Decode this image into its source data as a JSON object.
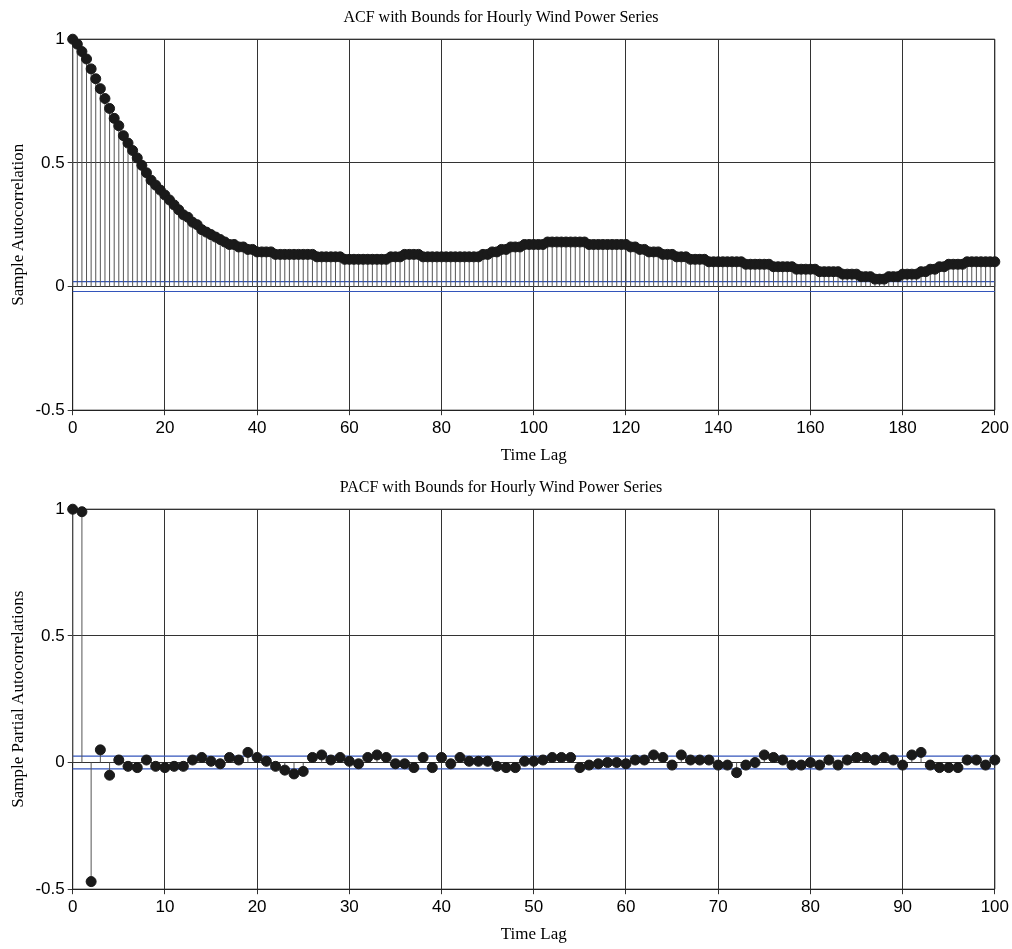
{
  "chart_data": [
    {
      "type": "lollipop",
      "title": "ACF with Bounds for Hourly Wind Power Series",
      "xlabel": "Time Lag",
      "ylabel": "Sample Autocorrelation",
      "x": [
        0,
        1,
        2,
        3,
        4,
        5,
        6,
        7,
        8,
        9,
        10,
        11,
        12,
        13,
        14,
        15,
        16,
        17,
        18,
        19,
        20,
        21,
        22,
        23,
        24,
        25,
        26,
        27,
        28,
        29,
        30,
        31,
        32,
        33,
        34,
        35,
        36,
        37,
        38,
        39,
        40,
        41,
        42,
        43,
        44,
        45,
        46,
        47,
        48,
        49,
        50,
        51,
        52,
        53,
        54,
        55,
        56,
        57,
        58,
        59,
        60,
        61,
        62,
        63,
        64,
        65,
        66,
        67,
        68,
        69,
        70,
        71,
        72,
        73,
        74,
        75,
        76,
        77,
        78,
        79,
        80,
        81,
        82,
        83,
        84,
        85,
        86,
        87,
        88,
        89,
        90,
        91,
        92,
        93,
        94,
        95,
        96,
        97,
        98,
        99,
        100,
        101,
        102,
        103,
        104,
        105,
        106,
        107,
        108,
        109,
        110,
        111,
        112,
        113,
        114,
        115,
        116,
        117,
        118,
        119,
        120,
        121,
        122,
        123,
        124,
        125,
        126,
        127,
        128,
        129,
        130,
        131,
        132,
        133,
        134,
        135,
        136,
        137,
        138,
        139,
        140,
        141,
        142,
        143,
        144,
        145,
        146,
        147,
        148,
        149,
        150,
        151,
        152,
        153,
        154,
        155,
        156,
        157,
        158,
        159,
        160,
        161,
        162,
        163,
        164,
        165,
        166,
        167,
        168,
        169,
        170,
        171,
        172,
        173,
        174,
        175,
        176,
        177,
        178,
        179,
        180,
        181,
        182,
        183,
        184,
        185,
        186,
        187,
        188,
        189,
        190,
        191,
        192,
        193,
        194,
        195,
        196,
        197,
        198,
        199,
        200
      ],
      "values": [
        1.0,
        0.98,
        0.95,
        0.92,
        0.88,
        0.84,
        0.8,
        0.76,
        0.72,
        0.68,
        0.65,
        0.61,
        0.58,
        0.55,
        0.52,
        0.49,
        0.46,
        0.43,
        0.41,
        0.39,
        0.37,
        0.35,
        0.33,
        0.31,
        0.29,
        0.28,
        0.26,
        0.25,
        0.23,
        0.22,
        0.21,
        0.2,
        0.19,
        0.18,
        0.17,
        0.17,
        0.16,
        0.16,
        0.15,
        0.15,
        0.14,
        0.14,
        0.14,
        0.14,
        0.13,
        0.13,
        0.13,
        0.13,
        0.13,
        0.13,
        0.13,
        0.13,
        0.13,
        0.12,
        0.12,
        0.12,
        0.12,
        0.12,
        0.12,
        0.11,
        0.11,
        0.11,
        0.11,
        0.11,
        0.11,
        0.11,
        0.11,
        0.11,
        0.11,
        0.12,
        0.12,
        0.12,
        0.13,
        0.13,
        0.13,
        0.13,
        0.12,
        0.12,
        0.12,
        0.12,
        0.12,
        0.12,
        0.12,
        0.12,
        0.12,
        0.12,
        0.12,
        0.12,
        0.12,
        0.13,
        0.13,
        0.14,
        0.14,
        0.15,
        0.15,
        0.16,
        0.16,
        0.16,
        0.17,
        0.17,
        0.17,
        0.17,
        0.17,
        0.18,
        0.18,
        0.18,
        0.18,
        0.18,
        0.18,
        0.18,
        0.18,
        0.18,
        0.17,
        0.17,
        0.17,
        0.17,
        0.17,
        0.17,
        0.17,
        0.17,
        0.17,
        0.16,
        0.16,
        0.15,
        0.15,
        0.14,
        0.14,
        0.14,
        0.13,
        0.13,
        0.13,
        0.12,
        0.12,
        0.12,
        0.11,
        0.11,
        0.11,
        0.11,
        0.1,
        0.1,
        0.1,
        0.1,
        0.1,
        0.1,
        0.1,
        0.1,
        0.09,
        0.09,
        0.09,
        0.09,
        0.09,
        0.09,
        0.08,
        0.08,
        0.08,
        0.08,
        0.08,
        0.07,
        0.07,
        0.07,
        0.07,
        0.07,
        0.06,
        0.06,
        0.06,
        0.06,
        0.06,
        0.05,
        0.05,
        0.05,
        0.05,
        0.04,
        0.04,
        0.04,
        0.03,
        0.03,
        0.03,
        0.04,
        0.04,
        0.04,
        0.05,
        0.05,
        0.05,
        0.05,
        0.06,
        0.06,
        0.07,
        0.07,
        0.08,
        0.08,
        0.09,
        0.09,
        0.09,
        0.09,
        0.1,
        0.1,
        0.1,
        0.1,
        0.1,
        0.1,
        0.1
      ],
      "color": "#1a1a1a",
      "marker": "circle",
      "grid": true,
      "xlim": [
        0,
        200
      ],
      "xticks": [
        0,
        20,
        40,
        60,
        80,
        100,
        120,
        140,
        160,
        180,
        200
      ],
      "ylim": [
        -0.5,
        1
      ],
      "yticks": [
        -0.5,
        0,
        0.5,
        1
      ],
      "ref_lines": [
        {
          "axis": "y",
          "value": 0.02,
          "color": "#3355bb"
        },
        {
          "axis": "y",
          "value": -0.02,
          "color": "#3355bb"
        }
      ]
    },
    {
      "type": "lollipop",
      "title": "PACF with Bounds for Hourly Wind Power Series",
      "xlabel": "Time Lag",
      "ylabel": "Sample Partial Autocorrelations",
      "x": [
        0,
        1,
        2,
        3,
        4,
        5,
        6,
        7,
        8,
        9,
        10,
        11,
        12,
        13,
        14,
        15,
        16,
        17,
        18,
        19,
        20,
        21,
        22,
        23,
        24,
        25,
        26,
        27,
        28,
        29,
        30,
        31,
        32,
        33,
        34,
        35,
        36,
        37,
        38,
        39,
        40,
        41,
        42,
        43,
        44,
        45,
        46,
        47,
        48,
        49,
        50,
        51,
        52,
        53,
        54,
        55,
        56,
        57,
        58,
        59,
        60,
        61,
        62,
        63,
        64,
        65,
        66,
        67,
        68,
        69,
        70,
        71,
        72,
        73,
        74,
        75,
        76,
        77,
        78,
        79,
        80,
        81,
        82,
        83,
        84,
        85,
        86,
        87,
        88,
        89,
        90,
        91,
        92,
        93,
        94,
        95,
        96,
        97,
        98,
        99,
        100
      ],
      "values": [
        1.0,
        0.99,
        -0.47,
        0.05,
        -0.05,
        0.01,
        -0.015,
        -0.02,
        0.01,
        -0.015,
        -0.02,
        -0.015,
        -0.015,
        0.01,
        0.02,
        0.005,
        -0.005,
        0.02,
        0.01,
        0.04,
        0.02,
        0.005,
        -0.015,
        -0.03,
        -0.045,
        -0.035,
        0.02,
        0.03,
        0.01,
        0.02,
        0.005,
        -0.005,
        0.02,
        0.03,
        0.02,
        -0.005,
        -0.005,
        -0.02,
        0.02,
        -0.02,
        0.02,
        -0.005,
        0.02,
        0.005,
        0.005,
        0.005,
        -0.015,
        -0.02,
        -0.02,
        0.005,
        0.005,
        0.01,
        0.02,
        0.02,
        0.02,
        -0.02,
        -0.01,
        -0.005,
        0,
        0,
        -0.005,
        0.01,
        0.01,
        0.03,
        0.02,
        -0.01,
        0.03,
        0.01,
        0.01,
        0.01,
        -0.01,
        -0.01,
        -0.04,
        -0.01,
        0,
        0.03,
        0.02,
        0.01,
        -0.01,
        -0.01,
        0,
        -0.01,
        0.01,
        -0.01,
        0.01,
        0.02,
        0.02,
        0.01,
        0.02,
        0.01,
        -0.01,
        0.03,
        0.04,
        -0.01,
        -0.02,
        -0.02,
        -0.02,
        0.01,
        0.01,
        -0.01,
        0.01
      ],
      "color": "#1a1a1a",
      "marker": "circle",
      "grid": true,
      "xlim": [
        0,
        100
      ],
      "xticks": [
        0,
        10,
        20,
        30,
        40,
        50,
        60,
        70,
        80,
        90,
        100
      ],
      "ylim": [
        -0.5,
        1
      ],
      "yticks": [
        -0.5,
        0,
        0.5,
        1
      ],
      "ref_lines": [
        {
          "axis": "y",
          "value": 0.025,
          "color": "#3355bb"
        },
        {
          "axis": "y",
          "value": -0.025,
          "color": "#3355bb"
        }
      ]
    }
  ]
}
